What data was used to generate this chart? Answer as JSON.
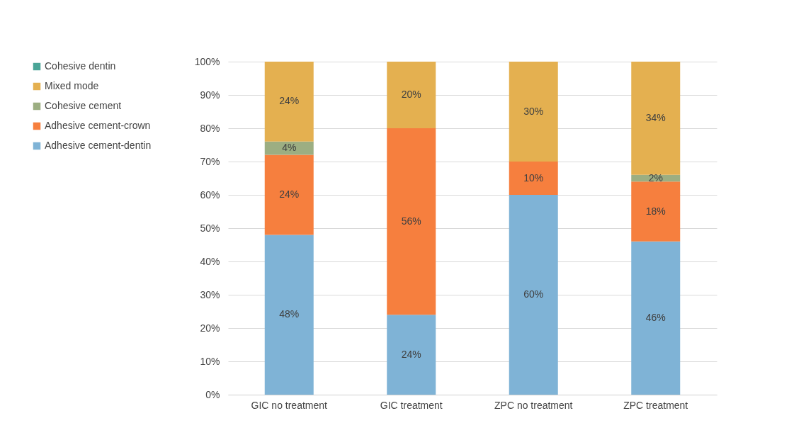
{
  "chart_data": {
    "type": "bar",
    "stacked": true,
    "categories": [
      "GIC no treatment",
      "GIC treatment",
      "ZPC no treatment",
      "ZPC treatment"
    ],
    "series": [
      {
        "name": "Adhesive cement-dentin",
        "color": "#7fb3d6",
        "values": [
          48,
          24,
          60,
          46
        ],
        "value_labels": [
          "48%",
          "24%",
          "60%",
          "46%"
        ]
      },
      {
        "name": "Adhesive cement-crown",
        "color": "#f67f3e",
        "values": [
          24,
          56,
          10,
          18
        ],
        "value_labels": [
          "24%",
          "56%",
          "10%",
          "18%"
        ]
      },
      {
        "name": "Cohesive cement",
        "color": "#9cae82",
        "values": [
          4,
          0,
          0,
          2
        ],
        "value_labels": [
          "4%",
          null,
          null,
          "2%"
        ]
      },
      {
        "name": "Mixed mode",
        "color": "#e4b050",
        "values": [
          24,
          20,
          30,
          34
        ],
        "value_labels": [
          "24%",
          "20%",
          "30%",
          "34%"
        ]
      },
      {
        "name": "Cohesive dentin",
        "color": "#4aa597",
        "values": [
          0,
          0,
          0,
          0
        ],
        "value_labels": [
          null,
          null,
          null,
          null
        ]
      }
    ],
    "ylim": [
      0,
      100
    ],
    "yticks": [
      {
        "value": 0,
        "label": "0%"
      },
      {
        "value": 10,
        "label": "10%"
      },
      {
        "value": 20,
        "label": "20%"
      },
      {
        "value": 30,
        "label": "30%"
      },
      {
        "value": 40,
        "label": "40%"
      },
      {
        "value": 50,
        "label": "50%"
      },
      {
        "value": 60,
        "label": "60%"
      },
      {
        "value": 70,
        "label": "70%"
      },
      {
        "value": 80,
        "label": "80%"
      },
      {
        "value": 90,
        "label": "90%"
      },
      {
        "value": 100,
        "label": "100%"
      }
    ],
    "grid": "y",
    "legend": "left"
  }
}
